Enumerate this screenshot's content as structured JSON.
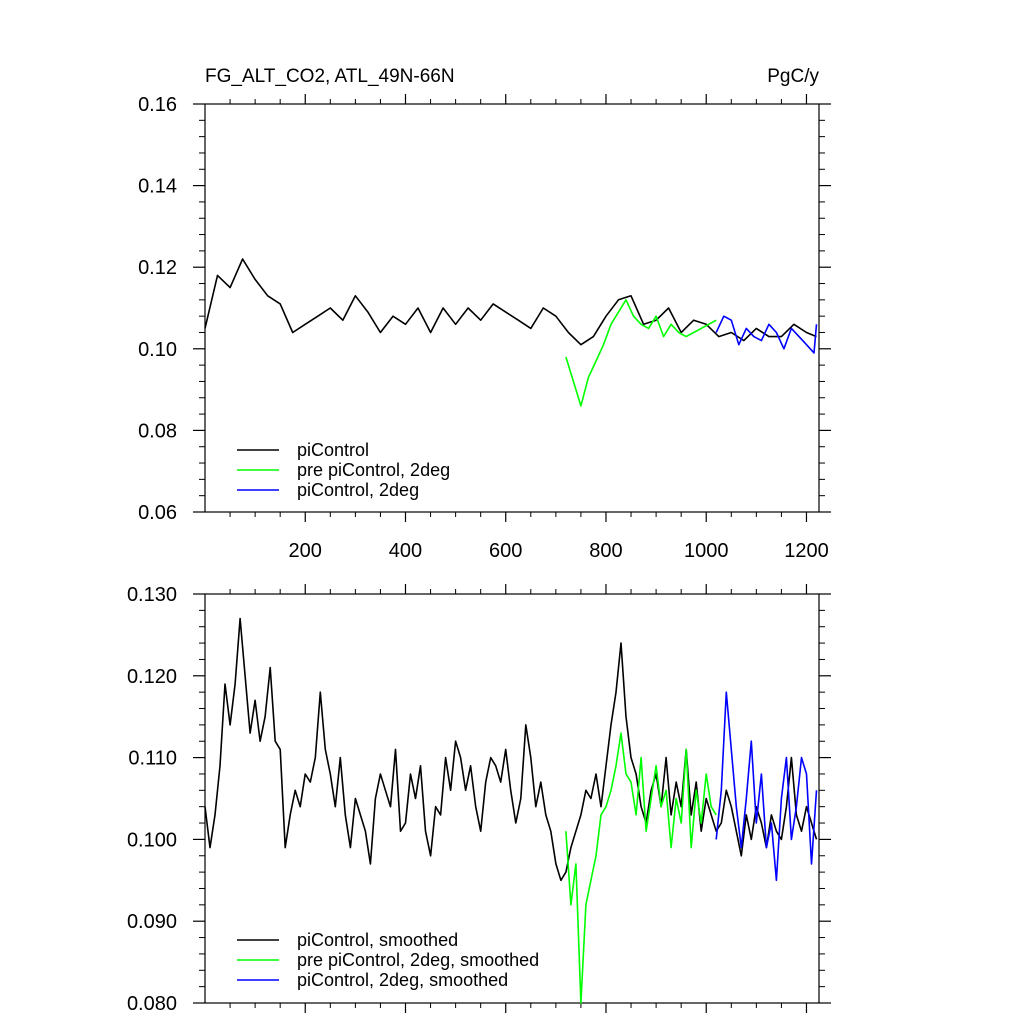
{
  "colors": {
    "piControl": "#000000",
    "pre_piControl_2deg": "#00ff00",
    "piControl_2deg": "#0000ff"
  },
  "chart_data": [
    {
      "type": "line",
      "title_left": "FG_ALT_CO2, ATL_49N-66N",
      "title_right": "PgC/y",
      "xlabel": "",
      "ylabel": "",
      "xlim": [
        0,
        1225
      ],
      "ylim": [
        0.06,
        0.16
      ],
      "x_ticks": [
        200,
        400,
        600,
        800,
        1000,
        1200
      ],
      "x_tick_labels": [
        "200",
        "400",
        "600",
        "800",
        "1000",
        "1200"
      ],
      "y_ticks": [
        0.06,
        0.08,
        0.1,
        0.12,
        0.14,
        0.16
      ],
      "y_tick_labels": [
        "0.06",
        "0.08",
        "0.10",
        "0.12",
        "0.14",
        "0.16"
      ],
      "legend_position": "bottom-left",
      "series": [
        {
          "name": "piControl",
          "color": "#000000",
          "x": [
            0,
            25,
            50,
            75,
            100,
            125,
            150,
            175,
            200,
            225,
            250,
            275,
            300,
            325,
            350,
            375,
            400,
            425,
            450,
            475,
            500,
            525,
            550,
            575,
            600,
            625,
            650,
            675,
            700,
            725,
            750,
            775,
            800,
            825,
            850,
            875,
            900,
            925,
            950,
            975,
            1000,
            1025,
            1050,
            1075,
            1100,
            1125,
            1150,
            1175,
            1200,
            1220
          ],
          "values": [
            0.105,
            0.118,
            0.115,
            0.122,
            0.117,
            0.113,
            0.111,
            0.104,
            0.106,
            0.108,
            0.11,
            0.107,
            0.113,
            0.109,
            0.104,
            0.108,
            0.106,
            0.11,
            0.104,
            0.11,
            0.106,
            0.11,
            0.107,
            0.111,
            0.109,
            0.107,
            0.105,
            0.11,
            0.108,
            0.104,
            0.101,
            0.103,
            0.108,
            0.112,
            0.113,
            0.106,
            0.107,
            0.11,
            0.104,
            0.107,
            0.106,
            0.103,
            0.104,
            0.102,
            0.105,
            0.103,
            0.103,
            0.106,
            0.104,
            0.103
          ]
        },
        {
          "name": "pre piControl, 2deg",
          "color": "#00ff00",
          "x": [
            720,
            735,
            750,
            765,
            780,
            795,
            810,
            825,
            840,
            855,
            870,
            885,
            900,
            915,
            930,
            945,
            960,
            975,
            990,
            1005,
            1020
          ],
          "values": [
            0.098,
            0.092,
            0.086,
            0.093,
            0.097,
            0.101,
            0.106,
            0.109,
            0.112,
            0.108,
            0.106,
            0.105,
            0.108,
            0.103,
            0.106,
            0.104,
            0.103,
            0.104,
            0.105,
            0.106,
            0.107
          ]
        },
        {
          "name": "piControl, 2deg",
          "color": "#0000ff",
          "x": [
            1020,
            1035,
            1050,
            1065,
            1080,
            1095,
            1110,
            1125,
            1140,
            1155,
            1170,
            1185,
            1200,
            1215,
            1220
          ],
          "values": [
            0.104,
            0.108,
            0.107,
            0.101,
            0.105,
            0.103,
            0.102,
            0.106,
            0.104,
            0.1,
            0.105,
            0.103,
            0.101,
            0.099,
            0.106
          ]
        }
      ]
    },
    {
      "type": "line",
      "title_left": "",
      "title_right": "",
      "xlabel": "",
      "ylabel": "",
      "xlim": [
        0,
        1225
      ],
      "ylim": [
        0.08,
        0.13
      ],
      "x_ticks": [
        200,
        400,
        600,
        800,
        1000,
        1200
      ],
      "x_tick_labels": [],
      "y_ticks": [
        0.08,
        0.09,
        0.1,
        0.11,
        0.12,
        0.13
      ],
      "y_tick_labels": [
        "0.080",
        "0.090",
        "0.100",
        "0.110",
        "0.120",
        "0.130"
      ],
      "legend_position": "bottom-left",
      "series": [
        {
          "name": "piControl, smoothed",
          "color": "#000000",
          "x": [
            0,
            10,
            20,
            30,
            40,
            50,
            60,
            70,
            80,
            90,
            100,
            110,
            120,
            130,
            140,
            150,
            160,
            170,
            180,
            190,
            200,
            210,
            220,
            230,
            240,
            250,
            260,
            270,
            280,
            290,
            300,
            310,
            320,
            330,
            340,
            350,
            360,
            370,
            380,
            390,
            400,
            410,
            420,
            430,
            440,
            450,
            460,
            470,
            480,
            490,
            500,
            510,
            520,
            530,
            540,
            550,
            560,
            570,
            580,
            590,
            600,
            610,
            620,
            630,
            640,
            650,
            660,
            670,
            680,
            690,
            700,
            710,
            720,
            730,
            740,
            750,
            760,
            770,
            780,
            790,
            800,
            810,
            820,
            830,
            840,
            850,
            860,
            870,
            880,
            890,
            900,
            910,
            920,
            930,
            940,
            950,
            960,
            970,
            980,
            990,
            1000,
            1010,
            1020,
            1030,
            1040,
            1050,
            1060,
            1070,
            1080,
            1090,
            1100,
            1110,
            1120,
            1130,
            1140,
            1150,
            1160,
            1170,
            1180,
            1190,
            1200,
            1210,
            1220
          ],
          "values": [
            0.104,
            0.099,
            0.103,
            0.109,
            0.119,
            0.114,
            0.119,
            0.127,
            0.12,
            0.113,
            0.117,
            0.112,
            0.115,
            0.121,
            0.112,
            0.111,
            0.099,
            0.103,
            0.106,
            0.104,
            0.108,
            0.107,
            0.11,
            0.118,
            0.111,
            0.108,
            0.104,
            0.11,
            0.103,
            0.099,
            0.105,
            0.103,
            0.101,
            0.097,
            0.105,
            0.108,
            0.106,
            0.104,
            0.111,
            0.101,
            0.102,
            0.108,
            0.105,
            0.109,
            0.101,
            0.098,
            0.104,
            0.103,
            0.11,
            0.106,
            0.112,
            0.11,
            0.106,
            0.109,
            0.104,
            0.101,
            0.107,
            0.11,
            0.109,
            0.107,
            0.111,
            0.106,
            0.102,
            0.105,
            0.114,
            0.11,
            0.104,
            0.107,
            0.103,
            0.101,
            0.097,
            0.095,
            0.096,
            0.099,
            0.101,
            0.103,
            0.106,
            0.105,
            0.108,
            0.104,
            0.109,
            0.114,
            0.118,
            0.124,
            0.115,
            0.11,
            0.108,
            0.104,
            0.102,
            0.106,
            0.108,
            0.104,
            0.11,
            0.103,
            0.107,
            0.104,
            0.111,
            0.103,
            0.107,
            0.101,
            0.105,
            0.103,
            0.101,
            0.102,
            0.106,
            0.104,
            0.101,
            0.098,
            0.103,
            0.1,
            0.104,
            0.102,
            0.099,
            0.103,
            0.101,
            0.1,
            0.104,
            0.11,
            0.103,
            0.101,
            0.104,
            0.102,
            0.1
          ]
        },
        {
          "name": "pre piControl, 2deg, smoothed",
          "color": "#00ff00",
          "x": [
            720,
            730,
            740,
            750,
            760,
            770,
            780,
            790,
            800,
            810,
            820,
            830,
            840,
            850,
            860,
            870,
            880,
            890,
            900,
            910,
            920,
            930,
            940,
            950,
            960,
            970,
            980,
            990,
            1000,
            1010,
            1020
          ],
          "values": [
            0.101,
            0.092,
            0.097,
            0.08,
            0.092,
            0.095,
            0.098,
            0.103,
            0.104,
            0.106,
            0.109,
            0.113,
            0.108,
            0.107,
            0.103,
            0.11,
            0.101,
            0.105,
            0.109,
            0.104,
            0.106,
            0.099,
            0.105,
            0.102,
            0.111,
            0.099,
            0.106,
            0.102,
            0.108,
            0.104,
            0.103
          ]
        },
        {
          "name": "piControl, 2deg, smoothed",
          "color": "#0000ff",
          "x": [
            1020,
            1030,
            1040,
            1050,
            1060,
            1070,
            1080,
            1090,
            1100,
            1110,
            1120,
            1130,
            1140,
            1150,
            1160,
            1170,
            1180,
            1190,
            1200,
            1210,
            1220
          ],
          "values": [
            0.1,
            0.106,
            0.118,
            0.111,
            0.104,
            0.099,
            0.105,
            0.112,
            0.102,
            0.108,
            0.099,
            0.102,
            0.095,
            0.105,
            0.11,
            0.1,
            0.104,
            0.11,
            0.108,
            0.097,
            0.106
          ]
        }
      ]
    }
  ]
}
